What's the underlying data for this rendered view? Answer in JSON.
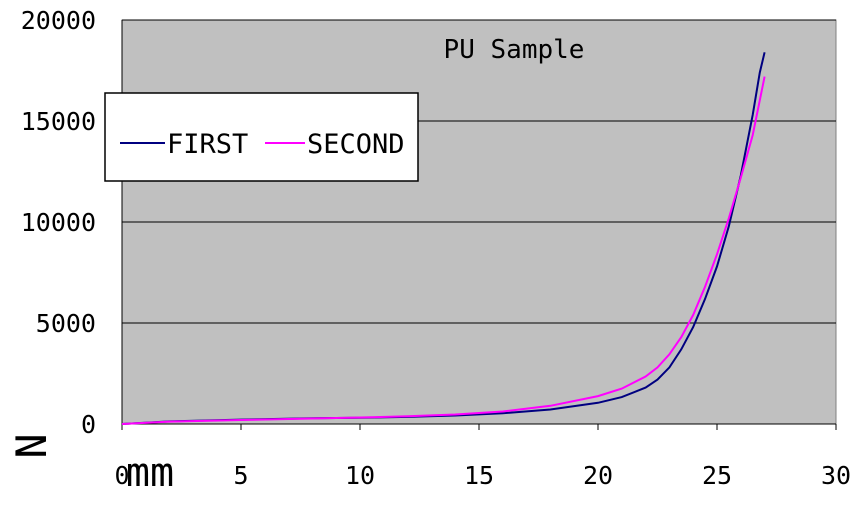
{
  "chart_data": {
    "type": "line",
    "title": "PU Sample",
    "xlabel": "mm",
    "ylabel": "N",
    "xlim": [
      0,
      30
    ],
    "ylim": [
      0,
      20000
    ],
    "x_ticks": [
      "0",
      "5",
      "10",
      "15",
      "20",
      "25",
      "30"
    ],
    "y_ticks": [
      "0",
      "5000",
      "10000",
      "15000",
      "20000"
    ],
    "grid": "horizontal",
    "legend_position": "top-left",
    "background_color": "#c0c0c0",
    "series": [
      {
        "name": "FIRST",
        "color": "#000080",
        "points": [
          [
            0,
            0
          ],
          [
            2,
            130
          ],
          [
            5,
            220
          ],
          [
            8,
            280
          ],
          [
            10,
            310
          ],
          [
            12,
            350
          ],
          [
            14,
            420
          ],
          [
            16,
            530
          ],
          [
            18,
            720
          ],
          [
            20,
            1050
          ],
          [
            21,
            1330
          ],
          [
            22,
            1800
          ],
          [
            22.5,
            2200
          ],
          [
            23,
            2800
          ],
          [
            23.5,
            3700
          ],
          [
            24,
            4800
          ],
          [
            24.5,
            6200
          ],
          [
            25,
            7800
          ],
          [
            25.5,
            9800
          ],
          [
            26,
            12300
          ],
          [
            26.5,
            15300
          ],
          [
            26.8,
            17400
          ],
          [
            27,
            18400
          ]
        ]
      },
      {
        "name": "SECOND",
        "color": "#ff00ff",
        "points": [
          [
            0,
            0
          ],
          [
            2,
            120
          ],
          [
            5,
            200
          ],
          [
            8,
            270
          ],
          [
            10,
            320
          ],
          [
            12,
            380
          ],
          [
            14,
            470
          ],
          [
            16,
            620
          ],
          [
            18,
            900
          ],
          [
            20,
            1380
          ],
          [
            21,
            1750
          ],
          [
            22,
            2350
          ],
          [
            22.5,
            2800
          ],
          [
            23,
            3450
          ],
          [
            23.5,
            4300
          ],
          [
            24,
            5400
          ],
          [
            24.5,
            6800
          ],
          [
            25,
            8400
          ],
          [
            25.5,
            10200
          ],
          [
            26,
            12200
          ],
          [
            26.5,
            14300
          ],
          [
            27,
            17200
          ]
        ]
      }
    ]
  }
}
